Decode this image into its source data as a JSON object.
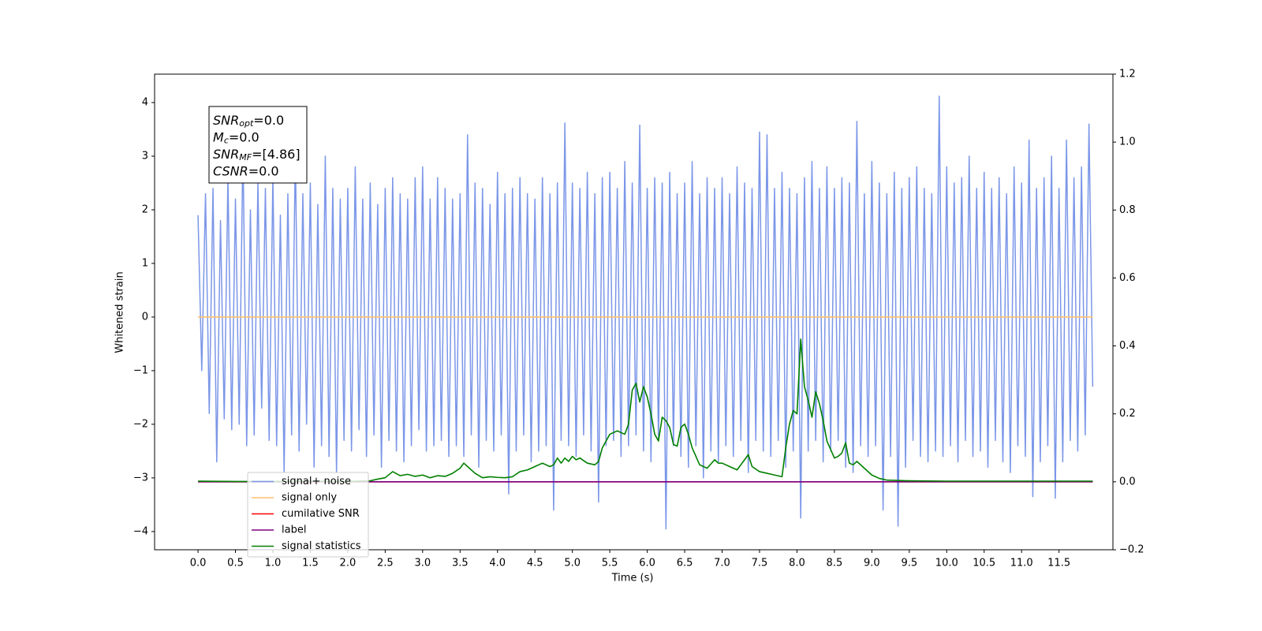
{
  "chart_data": {
    "type": "line",
    "xlabel": "Time (s)",
    "ylabel": "Whitened strain",
    "xlim": [
      -0.58,
      12.22
    ],
    "ylim": [
      -4.34,
      4.53
    ],
    "y2lim": [
      -0.2,
      1.2
    ],
    "xticks": [
      {
        "value": 0,
        "label": "0.0"
      },
      0.5,
      {
        "value": 1,
        "label": "1.0"
      },
      1.5,
      {
        "value": 2,
        "label": "2.0"
      },
      2.5,
      {
        "value": 3,
        "label": "3.0"
      },
      3.5,
      {
        "value": 4,
        "label": "4.0"
      },
      4.5,
      {
        "value": 5,
        "label": "5.0"
      },
      5.5,
      {
        "value": 6,
        "label": "6.0"
      },
      6.5,
      {
        "value": 7,
        "label": "7.0"
      },
      7.5,
      {
        "value": 8,
        "label": "8.0"
      },
      8.5,
      {
        "value": 9,
        "label": "9.0"
      },
      9.5,
      {
        "value": 10,
        "label": "10.0"
      },
      10.5,
      {
        "value": 11,
        "label": "11.0"
      },
      11.5
    ],
    "yticks": [
      {
        "value": -4,
        "label": "−4"
      },
      {
        "value": -3,
        "label": "−3"
      },
      {
        "value": -2,
        "label": "−2"
      },
      {
        "value": -1,
        "label": "−1"
      },
      0,
      1,
      2,
      3,
      4
    ],
    "y2ticks": [
      {
        "value": -0.2,
        "label": "−0.2"
      },
      {
        "value": 0,
        "label": "0.0"
      },
      0.2,
      0.4,
      0.6,
      0.8,
      {
        "value": 1,
        "label": "1.0"
      },
      1.2
    ],
    "grid": false,
    "legend": "lower left",
    "annotation": [
      {
        "main": "SNR",
        "sub": "opt",
        "rest": "=0.0"
      },
      {
        "main": "M",
        "sub": "c",
        "rest": "=0.0"
      },
      {
        "main": "SNR",
        "sub": "MF",
        "rest": "=[4.86]"
      },
      {
        "main": "CSNR",
        "rest": "=0.0"
      }
    ],
    "series": [
      {
        "name": "signal+ noise",
        "color": "#7b96e8",
        "axis": "y",
        "x": [
          0,
          0.05,
          0.1,
          0.15,
          0.2,
          0.25,
          0.3,
          0.35,
          0.4,
          0.45,
          0.5,
          0.55,
          0.6,
          0.65,
          0.7,
          0.75,
          0.8,
          0.85,
          0.9,
          0.95,
          1.0,
          1.05,
          1.1,
          1.15,
          1.2,
          1.25,
          1.3,
          1.35,
          1.4,
          1.45,
          1.5,
          1.55,
          1.6,
          1.65,
          1.7,
          1.75,
          1.8,
          1.85,
          1.9,
          1.95,
          2.0,
          2.05,
          2.1,
          2.15,
          2.2,
          2.25,
          2.3,
          2.35,
          2.4,
          2.45,
          2.5,
          2.55,
          2.6,
          2.65,
          2.7,
          2.75,
          2.8,
          2.85,
          2.9,
          2.95,
          3.0,
          3.05,
          3.1,
          3.15,
          3.2,
          3.25,
          3.3,
          3.35,
          3.4,
          3.45,
          3.5,
          3.55,
          3.6,
          3.65,
          3.7,
          3.75,
          3.8,
          3.85,
          3.9,
          3.95,
          4.0,
          4.05,
          4.1,
          4.15,
          4.2,
          4.25,
          4.3,
          4.35,
          4.4,
          4.45,
          4.5,
          4.55,
          4.6,
          4.65,
          4.7,
          4.75,
          4.8,
          4.85,
          4.9,
          4.95,
          5.0,
          5.05,
          5.1,
          5.15,
          5.2,
          5.25,
          5.3,
          5.35,
          5.4,
          5.45,
          5.5,
          5.55,
          5.6,
          5.65,
          5.7,
          5.75,
          5.8,
          5.85,
          5.9,
          5.95,
          6.0,
          6.05,
          6.1,
          6.15,
          6.2,
          6.25,
          6.3,
          6.35,
          6.4,
          6.45,
          6.5,
          6.55,
          6.6,
          6.65,
          6.7,
          6.75,
          6.8,
          6.85,
          6.9,
          6.95,
          7.0,
          7.05,
          7.1,
          7.15,
          7.2,
          7.25,
          7.3,
          7.35,
          7.4,
          7.45,
          7.5,
          7.55,
          7.6,
          7.65,
          7.7,
          7.75,
          7.8,
          7.85,
          7.9,
          7.95,
          8.0,
          8.05,
          8.1,
          8.15,
          8.2,
          8.25,
          8.3,
          8.35,
          8.4,
          8.45,
          8.5,
          8.55,
          8.6,
          8.65,
          8.7,
          8.75,
          8.8,
          8.85,
          8.9,
          8.95,
          9.0,
          9.05,
          9.1,
          9.15,
          9.2,
          9.25,
          9.3,
          9.35,
          9.4,
          9.45,
          9.5,
          9.55,
          9.6,
          9.65,
          9.7,
          9.75,
          9.8,
          9.85,
          9.9,
          9.95,
          10.0,
          10.05,
          10.1,
          10.15,
          10.2,
          10.25,
          10.3,
          10.35,
          10.4,
          10.45,
          10.5,
          10.55,
          10.6,
          10.65,
          10.7,
          10.75,
          10.8,
          10.85,
          10.9,
          10.95,
          11.0,
          11.05,
          11.1,
          11.15,
          11.2,
          11.25,
          11.3,
          11.35,
          11.4,
          11.45,
          11.5,
          11.55,
          11.6,
          11.65,
          11.7,
          11.75,
          11.8,
          11.85,
          11.9,
          11.95
        ],
        "values": [
          1.9,
          -1.0,
          2.3,
          -1.8,
          2.4,
          -2.7,
          1.8,
          -1.9,
          2.6,
          -2.1,
          2.2,
          -2.0,
          3.2,
          -2.4,
          2.0,
          -2.2,
          2.5,
          -1.7,
          2.4,
          -2.3,
          2.6,
          -2.4,
          1.9,
          -2.9,
          2.3,
          -2.2,
          3.1,
          -2.5,
          2.3,
          -2.0,
          2.5,
          -2.8,
          2.1,
          -2.4,
          3.0,
          -2.6,
          2.4,
          -2.9,
          2.2,
          -2.3,
          2.4,
          -2.5,
          2.8,
          -2.1,
          2.2,
          -2.6,
          2.5,
          -2.2,
          2.1,
          -2.8,
          2.4,
          -2.3,
          2.6,
          -2.5,
          2.3,
          -2.7,
          2.2,
          -2.4,
          2.6,
          -2.1,
          2.8,
          -2.5,
          2.2,
          -2.4,
          2.6,
          -2.3,
          2.4,
          -2.6,
          2.2,
          -2.4,
          2.3,
          -2.6,
          3.4,
          -2.2,
          2.5,
          -2.8,
          2.4,
          -2.3,
          2.1,
          -2.5,
          2.7,
          -2.2,
          2.3,
          -3.3,
          2.4,
          -2.5,
          2.6,
          -2.2,
          2.3,
          -2.7,
          2.2,
          -2.5,
          2.6,
          -2.4,
          2.3,
          -3.6,
          2.5,
          -2.3,
          3.62,
          -2.4,
          2.5,
          -2.6,
          2.4,
          -2.2,
          2.7,
          -2.5,
          2.3,
          -3.45,
          2.6,
          -2.4,
          2.7,
          -2.3,
          2.4,
          -2.6,
          2.9,
          -2.4,
          2.5,
          -2.2,
          3.58,
          -2.5,
          2.4,
          -2.7,
          2.6,
          -2.3,
          2.5,
          -3.95,
          2.7,
          -2.4,
          2.3,
          -2.6,
          2.5,
          -2.8,
          2.9,
          -2.4,
          2.3,
          -3.0,
          2.6,
          -2.5,
          2.4,
          -2.7,
          2.6,
          -2.4,
          2.3,
          -2.6,
          2.8,
          -2.3,
          2.5,
          -2.9,
          2.4,
          -2.3,
          3.45,
          -2.5,
          3.4,
          -2.6,
          2.4,
          -2.3,
          2.7,
          -2.8,
          2.4,
          -2.5,
          2.3,
          -3.75,
          2.6,
          -2.5,
          2.9,
          -2.3,
          2.4,
          -2.7,
          2.8,
          -2.5,
          2.4,
          -2.3,
          2.6,
          -2.8,
          2.5,
          -2.9,
          3.65,
          -2.4,
          2.3,
          -2.6,
          2.9,
          -2.4,
          2.5,
          -3.6,
          2.3,
          -2.6,
          2.7,
          -3.9,
          2.4,
          -2.8,
          2.6,
          -2.3,
          2.8,
          -2.6,
          2.4,
          -2.7,
          2.3,
          -2.5,
          4.12,
          -2.6,
          2.8,
          -2.4,
          2.5,
          -2.7,
          2.6,
          -2.3,
          3.0,
          -2.6,
          2.4,
          -2.5,
          2.7,
          -2.8,
          2.4,
          -2.3,
          2.6,
          -2.7,
          2.3,
          -2.9,
          2.8,
          -2.4,
          2.5,
          -2.6,
          3.3,
          -3.35,
          2.4,
          -2.7,
          2.6,
          -2.4,
          3.0,
          -3.38,
          2.4,
          -2.7,
          3.3,
          -2.3,
          2.6,
          -2.5,
          2.8,
          -2.2,
          3.6,
          -1.3
        ]
      },
      {
        "name": "signal only",
        "color": "#ffc06e",
        "axis": "y",
        "x": [
          0,
          11.95
        ],
        "values": [
          0,
          0
        ]
      },
      {
        "name": "cumilative SNR",
        "color": "#ff0000",
        "axis": "y2",
        "x": [
          0,
          11.95
        ],
        "values": [
          0,
          0
        ]
      },
      {
        "name": "label",
        "color": "#800080",
        "axis": "y2",
        "x": [
          0,
          11.95
        ],
        "values": [
          0,
          0
        ]
      },
      {
        "name": "signal statistics",
        "color": "#008000",
        "axis": "y2",
        "x": [
          0,
          0.5,
          1.0,
          1.5,
          2.0,
          2.3,
          2.4,
          2.5,
          2.6,
          2.7,
          2.8,
          2.9,
          3.0,
          3.1,
          3.2,
          3.3,
          3.4,
          3.5,
          3.55,
          3.6,
          3.7,
          3.8,
          3.9,
          4.0,
          4.1,
          4.2,
          4.3,
          4.4,
          4.5,
          4.6,
          4.7,
          4.75,
          4.8,
          4.85,
          4.9,
          4.95,
          5.0,
          5.05,
          5.1,
          5.2,
          5.3,
          5.35,
          5.4,
          5.5,
          5.6,
          5.7,
          5.75,
          5.8,
          5.85,
          5.9,
          5.95,
          6.0,
          6.05,
          6.1,
          6.15,
          6.2,
          6.25,
          6.3,
          6.35,
          6.4,
          6.45,
          6.5,
          6.55,
          6.6,
          6.7,
          6.8,
          6.9,
          6.95,
          7.0,
          7.1,
          7.2,
          7.3,
          7.35,
          7.4,
          7.5,
          7.6,
          7.7,
          7.8,
          7.85,
          7.9,
          7.95,
          8.0,
          8.05,
          8.1,
          8.15,
          8.2,
          8.25,
          8.3,
          8.35,
          8.4,
          8.5,
          8.55,
          8.6,
          8.65,
          8.7,
          8.75,
          8.8,
          8.9,
          9.0,
          9.1,
          9.2,
          9.5,
          10.0,
          10.5,
          11.0,
          11.5,
          11.95
        ],
        "values": [
          0.002,
          0.001,
          0.001,
          0.002,
          0.001,
          0.003,
          0.008,
          0.012,
          0.03,
          0.018,
          0.022,
          0.016,
          0.02,
          0.012,
          0.018,
          0.016,
          0.025,
          0.04,
          0.055,
          0.045,
          0.025,
          0.012,
          0.015,
          0.013,
          0.012,
          0.015,
          0.03,
          0.035,
          0.045,
          0.055,
          0.045,
          0.05,
          0.07,
          0.055,
          0.07,
          0.06,
          0.075,
          0.065,
          0.07,
          0.055,
          0.05,
          0.06,
          0.1,
          0.14,
          0.15,
          0.14,
          0.17,
          0.27,
          0.29,
          0.235,
          0.28,
          0.25,
          0.2,
          0.14,
          0.12,
          0.19,
          0.18,
          0.16,
          0.11,
          0.105,
          0.16,
          0.17,
          0.14,
          0.1,
          0.05,
          0.04,
          0.065,
          0.055,
          0.055,
          0.045,
          0.035,
          0.065,
          0.08,
          0.045,
          0.03,
          0.025,
          0.02,
          0.015,
          0.1,
          0.17,
          0.21,
          0.2,
          0.42,
          0.28,
          0.24,
          0.19,
          0.265,
          0.23,
          0.18,
          0.12,
          0.07,
          0.075,
          0.085,
          0.115,
          0.055,
          0.05,
          0.06,
          0.04,
          0.02,
          0.01,
          0.005,
          0.003,
          0.002,
          0.002,
          0.002,
          0.002,
          0.002
        ]
      }
    ]
  }
}
